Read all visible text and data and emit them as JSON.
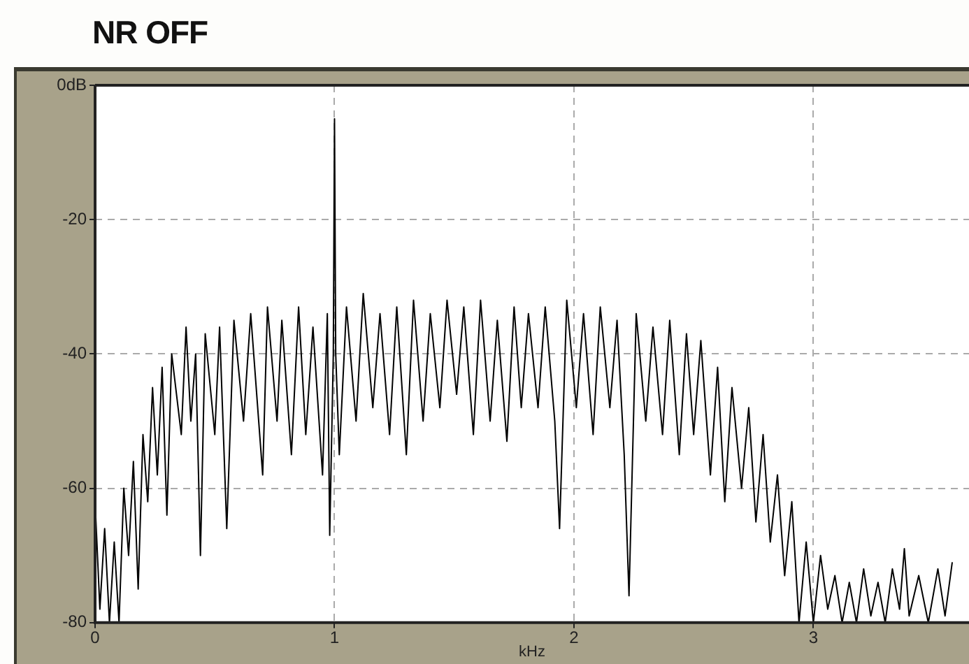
{
  "chart_data": {
    "type": "line",
    "title": "NR OFF",
    "xlabel": "kHz",
    "x": [
      0,
      0.02,
      0.04,
      0.06,
      0.08,
      0.1,
      0.12,
      0.14,
      0.16,
      0.18,
      0.2,
      0.22,
      0.24,
      0.26,
      0.28,
      0.3,
      0.32,
      0.36,
      0.38,
      0.4,
      0.42,
      0.44,
      0.46,
      0.5,
      0.52,
      0.55,
      0.58,
      0.62,
      0.65,
      0.7,
      0.72,
      0.76,
      0.78,
      0.82,
      0.85,
      0.88,
      0.91,
      0.95,
      0.97,
      0.98,
      0.995,
      1.0,
      1.005,
      1.02,
      1.05,
      1.09,
      1.12,
      1.16,
      1.19,
      1.23,
      1.26,
      1.3,
      1.33,
      1.37,
      1.4,
      1.44,
      1.47,
      1.51,
      1.54,
      1.58,
      1.61,
      1.65,
      1.68,
      1.72,
      1.75,
      1.78,
      1.81,
      1.85,
      1.88,
      1.92,
      1.94,
      1.97,
      2.01,
      2.04,
      2.08,
      2.11,
      2.15,
      2.18,
      2.21,
      2.23,
      2.26,
      2.3,
      2.33,
      2.37,
      2.4,
      2.44,
      2.47,
      2.5,
      2.53,
      2.57,
      2.6,
      2.63,
      2.66,
      2.7,
      2.73,
      2.76,
      2.79,
      2.82,
      2.85,
      2.88,
      2.91,
      2.94,
      2.97,
      3.0,
      3.03,
      3.06,
      3.09,
      3.12,
      3.15,
      3.18,
      3.21,
      3.24,
      3.27,
      3.3,
      3.33,
      3.36,
      3.38,
      3.4,
      3.44,
      3.48,
      3.52,
      3.55,
      3.58
    ],
    "series": [
      {
        "color": "#000000",
        "values": [
          -62,
          -78,
          -66,
          -80,
          -68,
          -80,
          -60,
          -70,
          -56,
          -75,
          -52,
          -62,
          -45,
          -58,
          -42,
          -64,
          -40,
          -52,
          -36,
          -50,
          -40,
          -70,
          -37,
          -52,
          -36,
          -66,
          -35,
          -50,
          -34,
          -58,
          -33,
          -50,
          -35,
          -55,
          -33,
          -52,
          -36,
          -58,
          -34,
          -67,
          -40,
          -5,
          -40,
          -55,
          -33,
          -50,
          -31,
          -48,
          -34,
          -52,
          -33,
          -55,
          -32,
          -50,
          -34,
          -48,
          -32,
          -46,
          -33,
          -52,
          -32,
          -50,
          -35,
          -53,
          -33,
          -48,
          -34,
          -48,
          -33,
          -50,
          -66,
          -32,
          -48,
          -34,
          -52,
          -33,
          -48,
          -35,
          -55,
          -76,
          -34,
          -50,
          -36,
          -52,
          -35,
          -55,
          -37,
          -52,
          -38,
          -58,
          -42,
          -62,
          -45,
          -60,
          -48,
          -65,
          -52,
          -68,
          -58,
          -73,
          -62,
          -80,
          -68,
          -80,
          -70,
          -78,
          -73,
          -80,
          -74,
          -80,
          -72,
          -79,
          -74,
          -80,
          -72,
          -78,
          -69,
          -79,
          -73,
          -80,
          -72,
          -79,
          -71
        ]
      }
    ],
    "xlim": [
      0,
      3.65
    ],
    "xticks": [
      0,
      1,
      2,
      3
    ],
    "ylim": [
      -80,
      0
    ],
    "yticks": [
      {
        "value": 0,
        "label": "0dB"
      },
      -20,
      -40,
      -60,
      -80
    ],
    "grid": true,
    "legend": false,
    "marker": "none",
    "line_style": "solid"
  }
}
